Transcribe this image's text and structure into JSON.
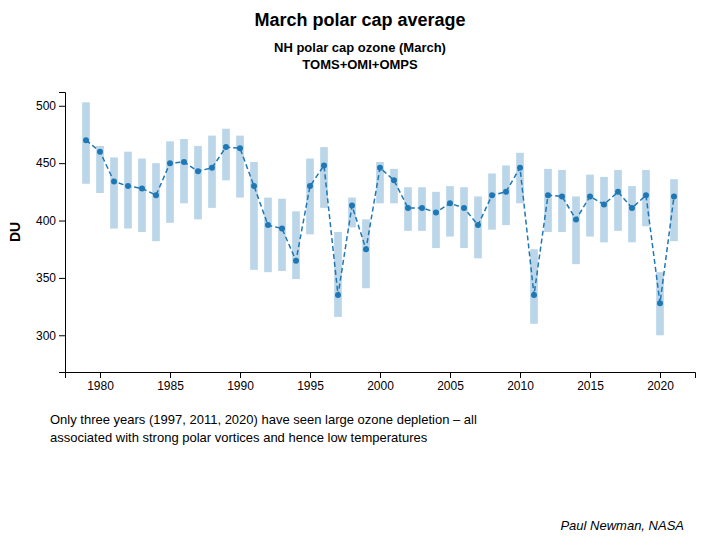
{
  "chart_data": {
    "type": "line",
    "title": "March polar cap average",
    "subtitle": [
      "NH polar cap ozone (March)",
      "TOMS+OMI+OMPS"
    ],
    "ylabel": "DU",
    "caption": [
      "Only three years (1997, 2011, 2020) have seen large ozone depletion – all",
      "associated with strong polar vortices and hence low temperatures"
    ],
    "credit": "Paul Newman, NASA",
    "line_style": "dashed",
    "marker": "circle",
    "grid": false,
    "ylim": [
      268,
      512
    ],
    "yticks": [
      300,
      350,
      400,
      450,
      500
    ],
    "xlim": [
      1977.5,
      2022.5
    ],
    "xticks": [
      1980,
      1985,
      1990,
      1995,
      2000,
      2005,
      2010,
      2015,
      2020
    ],
    "x": [
      1979,
      1980,
      1981,
      1982,
      1983,
      1984,
      1985,
      1986,
      1987,
      1988,
      1989,
      1990,
      1991,
      1992,
      1993,
      1994,
      1995,
      1996,
      1997,
      1998,
      1999,
      2000,
      2001,
      2002,
      2003,
      2004,
      2005,
      2006,
      2007,
      2008,
      2009,
      2010,
      2011,
      2012,
      2013,
      2014,
      2015,
      2016,
      2017,
      2018,
      2019,
      2020,
      2021
    ],
    "values": [
      470,
      460,
      434,
      430,
      428,
      422,
      450,
      451,
      443,
      446,
      464,
      463,
      430,
      396,
      393,
      365,
      430,
      448,
      335,
      413,
      375,
      446,
      435,
      411,
      411,
      407,
      415,
      411,
      396,
      422,
      425,
      446,
      335,
      422,
      421,
      401,
      421,
      414,
      425,
      411,
      422,
      328,
      421
    ],
    "low": [
      432,
      424,
      393,
      393,
      390,
      382,
      398,
      415,
      401,
      411,
      435,
      420,
      357,
      355,
      356,
      349,
      388,
      411,
      316,
      394,
      341,
      415,
      415,
      391,
      391,
      376,
      386,
      376,
      367,
      392,
      396,
      415,
      310,
      390,
      390,
      362,
      386,
      381,
      391,
      381,
      395,
      300,
      382
    ],
    "high": [
      503,
      465,
      455,
      460,
      454,
      450,
      469,
      471,
      465,
      474,
      480,
      474,
      451,
      420,
      419,
      408,
      454,
      464,
      390,
      420,
      401,
      451,
      445,
      429,
      429,
      425,
      430,
      429,
      421,
      441,
      448,
      459,
      375,
      445,
      444,
      421,
      440,
      438,
      444,
      430,
      444,
      355,
      436
    ]
  }
}
